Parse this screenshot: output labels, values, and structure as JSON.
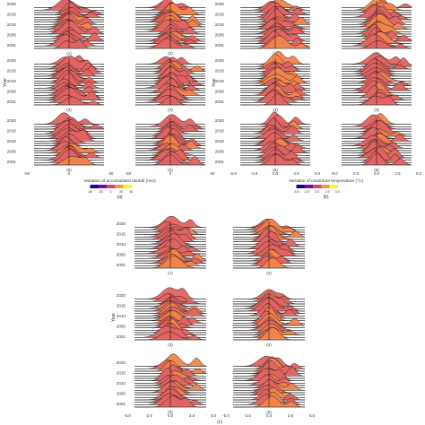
{
  "chart_data": [
    {
      "type": "area",
      "title": "",
      "xlabel": "Variation of accumulated rainfall (mm)",
      "ylabel": "Year",
      "xlim": [
        -50,
        60
      ],
      "x_ticks": [
        "-50",
        "0",
        "50"
      ],
      "y_ticks": [
        "2020",
        "2015",
        "2010",
        "2005",
        "2001"
      ],
      "panels": [
        "(1)",
        "(2)",
        "(3)",
        "(4)",
        "(5)",
        "(6)"
      ],
      "caption": "(a)",
      "legend": {
        "title": "Variation of accumulated rainfall (mm)",
        "ticks": [
          "-60",
          "-30",
          "0",
          "30",
          "60"
        ],
        "colors": [
          "#0d0887",
          "#7e03a8",
          "#cc4778",
          "#f89540",
          "#f0f921"
        ]
      },
      "series": [
        {
          "name": "2001",
          "peak_x": 5
        },
        {
          "name": "2005",
          "peak_x": 0
        },
        {
          "name": "2010",
          "peak_x": -4
        },
        {
          "name": "2015",
          "peak_x": 3
        },
        {
          "name": "2020",
          "peak_x": 8
        }
      ]
    },
    {
      "type": "area",
      "title": "",
      "xlabel": "Variation of maximum temperature (°C)",
      "ylabel": "Year",
      "xlim": [
        -5,
        5
      ],
      "x_ticks": [
        "-5.0",
        "-2.5",
        "0.0",
        "2.5",
        "5.0"
      ],
      "y_ticks": [
        "2020",
        "2015",
        "2010",
        "2005",
        "2001"
      ],
      "panels": [
        "(1)",
        "(2)",
        "(3)",
        "(4)",
        "(5)",
        "(6)"
      ],
      "caption": "(b)",
      "legend": {
        "title": "Variation of maximum temperature (°C)",
        "ticks": [
          "-5.0",
          "-2.5",
          "0.0",
          "2.5",
          "5.0"
        ],
        "colors": [
          "#0d0887",
          "#7e03a8",
          "#cc4778",
          "#f89540",
          "#f0f921"
        ]
      },
      "series": [
        {
          "name": "2001",
          "peak_x": 0.3
        },
        {
          "name": "2005",
          "peak_x": -0.2
        },
        {
          "name": "2010",
          "peak_x": 0.5
        },
        {
          "name": "2015",
          "peak_x": 0.0
        },
        {
          "name": "2020",
          "peak_x": 0.6
        }
      ]
    },
    {
      "type": "area",
      "title": "",
      "xlabel": "",
      "ylabel": "Year",
      "xlim": [
        -5,
        5
      ],
      "x_ticks": [
        "-5.0",
        "-2.5",
        "0.0",
        "2.5",
        "5.0"
      ],
      "y_ticks": [
        "2020",
        "2015",
        "2010",
        "2005",
        "2001"
      ],
      "panels": [
        "(1)",
        "(2)",
        "(3)",
        "(4)",
        "(5)",
        "(6)"
      ],
      "caption": "(c)",
      "series": [
        {
          "name": "2001",
          "peak_x": 0.2
        },
        {
          "name": "2005",
          "peak_x": -0.3
        },
        {
          "name": "2010",
          "peak_x": 0.4
        },
        {
          "name": "2015",
          "peak_x": 0.1
        },
        {
          "name": "2020",
          "peak_x": 0.5
        }
      ]
    }
  ]
}
